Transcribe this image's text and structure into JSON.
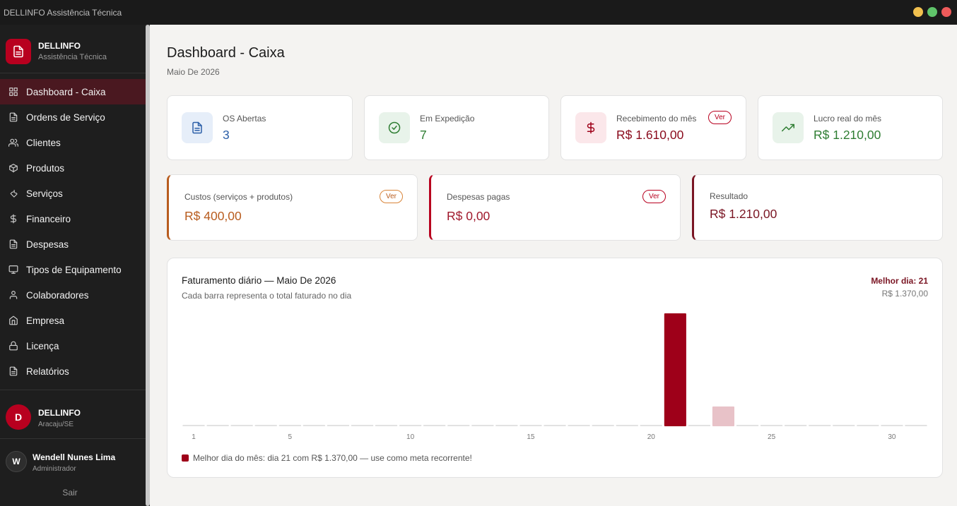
{
  "window": {
    "title": "DELLINFO Assistência Técnica"
  },
  "brand": {
    "name": "DELLINFO",
    "subtitle": "Assistência Técnica"
  },
  "nav": [
    {
      "label": "Dashboard - Caixa",
      "icon": "dashboard-grid-icon",
      "active": true
    },
    {
      "label": "Ordens de Serviço",
      "icon": "file-icon"
    },
    {
      "label": "Clientes",
      "icon": "users-icon"
    },
    {
      "label": "Produtos",
      "icon": "box-icon"
    },
    {
      "label": "Serviços",
      "icon": "wrench-icon"
    },
    {
      "label": "Financeiro",
      "icon": "dollar-icon"
    },
    {
      "label": "Despesas",
      "icon": "file-icon"
    },
    {
      "label": "Tipos de Equipamento",
      "icon": "monitor-icon"
    },
    {
      "label": "Colaboradores",
      "icon": "user-icon"
    },
    {
      "label": "Empresa",
      "icon": "home-icon"
    },
    {
      "label": "Licença",
      "icon": "lock-icon"
    },
    {
      "label": "Relatórios",
      "icon": "file-icon"
    }
  ],
  "org": {
    "initial": "D",
    "name": "DELLINFO",
    "location": "Aracaju/SE"
  },
  "user": {
    "initial": "W",
    "name": "Wendell Nunes Lima",
    "role": "Administrador"
  },
  "logout_label": "Sair",
  "page": {
    "title": "Dashboard - Caixa",
    "subtitle": "Maio De 2026"
  },
  "stats": {
    "os_abertas": {
      "label": "OS Abertas",
      "value": "3"
    },
    "em_expedicao": {
      "label": "Em Expedição",
      "value": "7"
    },
    "recebimento": {
      "label": "Recebimento do mês",
      "value": "R$ 1.610,00",
      "action": "Ver"
    },
    "lucro": {
      "label": "Lucro real do mês",
      "value": "R$ 1.210,00"
    }
  },
  "summary": {
    "custos": {
      "label": "Custos (serviços + produtos)",
      "value": "R$ 400,00",
      "action": "Ver"
    },
    "despesas": {
      "label": "Despesas pagas",
      "value": "R$ 0,00",
      "action": "Ver"
    },
    "resultado": {
      "label": "Resultado",
      "value": "R$ 1.210,00"
    }
  },
  "colors": {
    "accent": "#9e0019",
    "blue": "#2b5fa8",
    "green": "#2e7d32",
    "orange": "#b85c1e",
    "red": "#a0192c"
  },
  "chart": {
    "title": "Faturamento diário — Maio De 2026",
    "subtitle": "Cada barra representa o total faturado no dia",
    "best_label": "Melhor dia: 21",
    "best_value": "R$ 1.370,00",
    "legend": "Melhor dia do mês: dia 21 com R$ 1.370,00 — use como meta recorrente!"
  },
  "chart_data": {
    "type": "bar",
    "x": [
      1,
      2,
      3,
      4,
      5,
      6,
      7,
      8,
      9,
      10,
      11,
      12,
      13,
      14,
      15,
      16,
      17,
      18,
      19,
      20,
      21,
      22,
      23,
      24,
      25,
      26,
      27,
      28,
      29,
      30,
      31
    ],
    "tick_labels": [
      "1",
      "5",
      "10",
      "15",
      "20",
      "25",
      "30"
    ],
    "values": [
      0,
      0,
      0,
      0,
      0,
      0,
      0,
      0,
      0,
      0,
      0,
      0,
      0,
      0,
      0,
      0,
      0,
      0,
      0,
      0,
      1370,
      0,
      240,
      0,
      0,
      0,
      0,
      0,
      0,
      0,
      0
    ],
    "highlight_day": 21,
    "ylim": [
      0,
      1370
    ]
  }
}
